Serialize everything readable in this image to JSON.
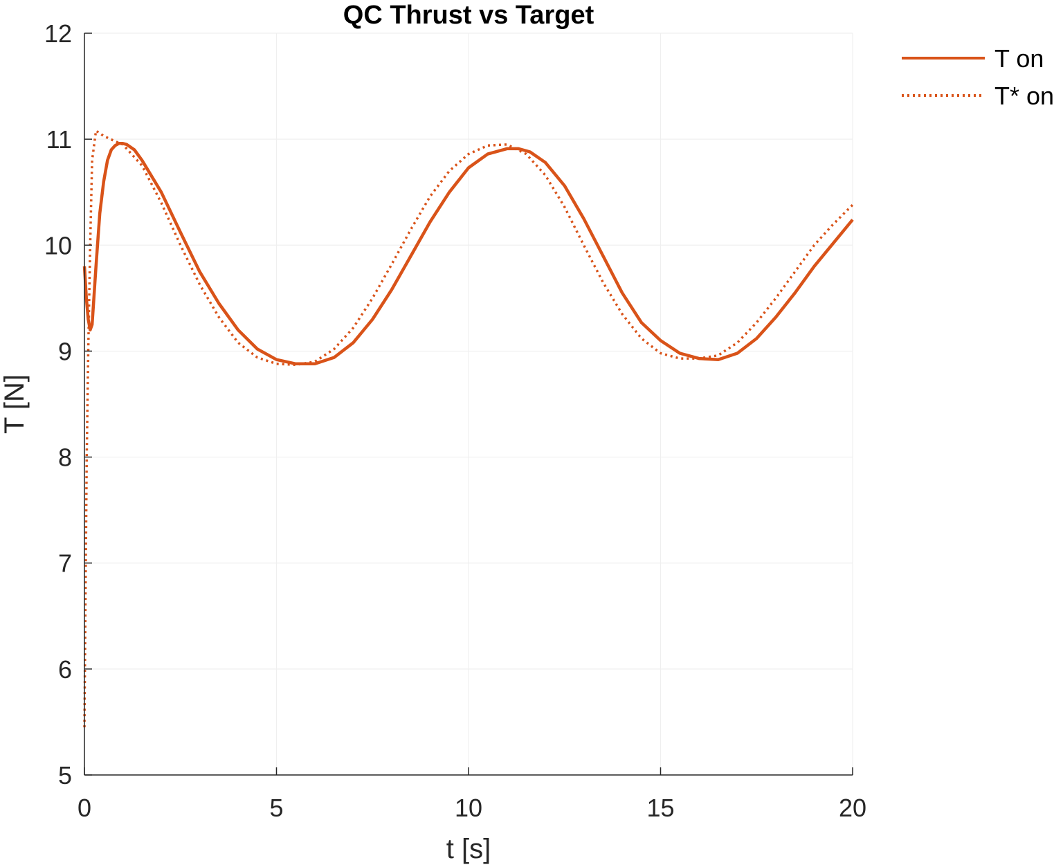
{
  "chart_data": {
    "type": "line",
    "title": "QC Thrust vs Target",
    "xlabel": "t [s]",
    "ylabel": "T [N]",
    "xlim": [
      0,
      20
    ],
    "ylim": [
      5,
      12
    ],
    "xticks": [
      0,
      5,
      10,
      15,
      20
    ],
    "yticks": [
      5,
      6,
      7,
      8,
      9,
      10,
      11,
      12
    ],
    "grid": "on",
    "legend_position": "top-right, outside axes",
    "series": [
      {
        "name": "T on",
        "style": "solid",
        "color": "#D95319",
        "x": [
          0,
          0.05,
          0.1,
          0.15,
          0.2,
          0.3,
          0.4,
          0.5,
          0.6,
          0.7,
          0.8,
          0.9,
          1.0,
          1.1,
          1.3,
          1.5,
          2.0,
          2.5,
          3.0,
          3.5,
          4.0,
          4.5,
          5.0,
          5.5,
          6.0,
          6.5,
          7.0,
          7.5,
          8.0,
          8.5,
          9.0,
          9.5,
          10.0,
          10.5,
          11.0,
          11.3,
          11.6,
          12.0,
          12.5,
          13.0,
          13.5,
          14.0,
          14.5,
          15.0,
          15.5,
          16.0,
          16.5,
          17.0,
          17.5,
          18.0,
          18.5,
          19.0,
          19.5,
          20.0
        ],
        "y": [
          9.8,
          9.5,
          9.3,
          9.2,
          9.25,
          9.8,
          10.3,
          10.6,
          10.8,
          10.9,
          10.94,
          10.96,
          10.96,
          10.95,
          10.9,
          10.8,
          10.5,
          10.12,
          9.75,
          9.45,
          9.2,
          9.02,
          8.92,
          8.88,
          8.88,
          8.94,
          9.08,
          9.3,
          9.58,
          9.9,
          10.22,
          10.5,
          10.73,
          10.86,
          10.91,
          10.91,
          10.88,
          10.78,
          10.56,
          10.25,
          9.9,
          9.55,
          9.27,
          9.1,
          8.98,
          8.93,
          8.92,
          8.98,
          9.12,
          9.32,
          9.55,
          9.8,
          10.02,
          10.24
        ]
      },
      {
        "name": "T* on",
        "style": "dotted",
        "color": "#D95319",
        "x": [
          0,
          0.03,
          0.06,
          0.1,
          0.15,
          0.2,
          0.3,
          0.5,
          0.8,
          1.0,
          1.5,
          2.0,
          2.5,
          3.0,
          3.5,
          4.0,
          4.5,
          5.0,
          5.5,
          6.0,
          6.5,
          7.0,
          7.5,
          8.0,
          8.5,
          9.0,
          9.5,
          10.0,
          10.5,
          11.0,
          11.5,
          12.0,
          12.5,
          13.0,
          13.5,
          14.0,
          14.5,
          15.0,
          15.5,
          16.0,
          16.5,
          17.0,
          17.5,
          18.0,
          18.5,
          19.0,
          19.5,
          20.0
        ],
        "y": [
          5.45,
          6.8,
          8.0,
          9.0,
          10.0,
          10.8,
          11.08,
          11.03,
          10.98,
          10.95,
          10.75,
          10.4,
          10.0,
          9.63,
          9.32,
          9.08,
          8.94,
          8.88,
          8.87,
          8.9,
          9.02,
          9.22,
          9.5,
          9.82,
          10.15,
          10.46,
          10.7,
          10.86,
          10.94,
          10.95,
          10.86,
          10.66,
          10.36,
          10.0,
          9.65,
          9.35,
          9.12,
          8.98,
          8.93,
          8.93,
          8.96,
          9.08,
          9.27,
          9.5,
          9.75,
          10.0,
          10.2,
          10.38
        ]
      }
    ]
  }
}
